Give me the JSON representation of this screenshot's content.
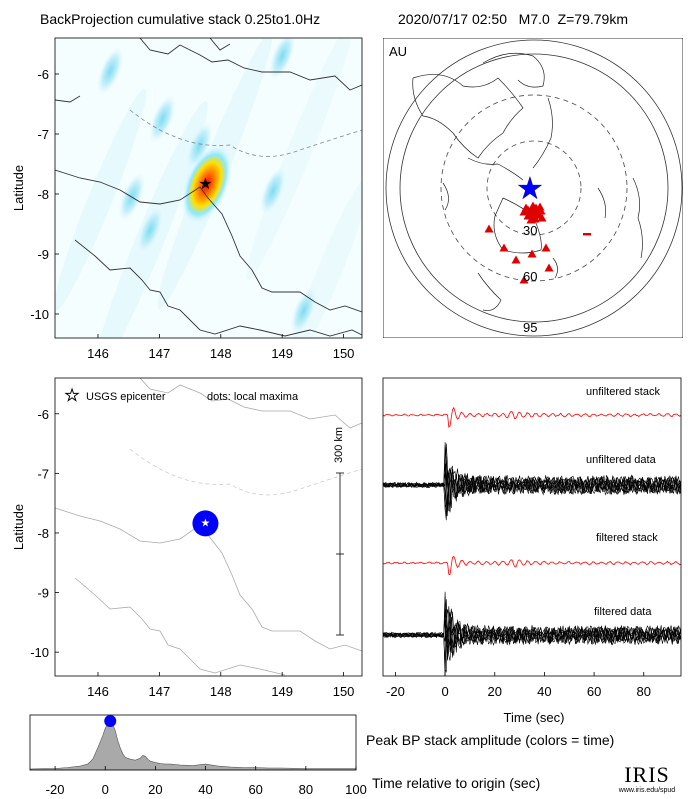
{
  "header": {
    "left_title": "BackProjection cumulative stack 0.25to1.0Hz",
    "right_title": "2020/07/17 02:50   M7.0  Z=79.79km"
  },
  "colors": {
    "stack_red": "#ff0000",
    "data_black": "#000000",
    "epicenter_blue": "#0000ff",
    "station_red": "#e00000",
    "peak_fill": "#a9a9a9",
    "map_water": "#ffffff",
    "coast_gray": "#555555"
  },
  "chart_data": [
    {
      "id": "bp_map",
      "type": "heatmap",
      "title": "BackProjection cumulative stack 0.25to1.0Hz",
      "ylabel": "Latitude",
      "xlim": [
        145.3,
        150.3
      ],
      "ylim": [
        -10.4,
        -5.4
      ],
      "x_ticks": [
        "146",
        "147",
        "148",
        "149",
        "150"
      ],
      "y_ticks": [
        "-6",
        "-7",
        "-8",
        "-9",
        "-10"
      ],
      "hotspot": {
        "lon": 147.77,
        "lat": -7.84
      },
      "epicenter": {
        "lon": 147.75,
        "lat": -7.84,
        "symbol": "star"
      },
      "faint_blobs": [
        {
          "lon": 147.05,
          "lat": -6.75
        },
        {
          "lon": 147.65,
          "lat": -7.2
        },
        {
          "lon": 146.85,
          "lat": -8.6
        },
        {
          "lon": 146.55,
          "lat": -8.05
        },
        {
          "lon": 148.85,
          "lat": -7.95
        },
        {
          "lon": 149.35,
          "lat": -9.95
        },
        {
          "lon": 146.2,
          "lat": -5.95
        },
        {
          "lon": 149.0,
          "lat": -5.7
        }
      ]
    },
    {
      "id": "station_map",
      "type": "scatter",
      "network_label": "AU",
      "ring_labels": [
        "30",
        "60",
        "95"
      ],
      "epicenter_symbol": "star",
      "stations_count_note": "",
      "stations": [
        [
          -10,
          -24
        ],
        [
          -6,
          -22
        ],
        [
          -2,
          -23
        ],
        [
          3,
          -24
        ],
        [
          -8,
          -20
        ],
        [
          -1,
          -18
        ],
        [
          2,
          -20
        ],
        [
          5,
          -21
        ],
        [
          -4,
          -26
        ],
        [
          0,
          -28
        ],
        [
          4,
          -27
        ],
        [
          7,
          -23
        ],
        [
          -6,
          -28
        ],
        [
          1,
          -31
        ],
        [
          -45,
          -41
        ],
        [
          -30,
          -60
        ],
        [
          -18,
          -72
        ],
        [
          -2,
          -66
        ],
        [
          12,
          -60
        ],
        [
          -10,
          -92
        ],
        [
          15,
          -80
        ],
        [
          6,
          -19
        ],
        [
          -3,
          -32
        ],
        [
          8,
          -30
        ]
      ],
      "station_extra": [
        {
          "shape": "dash",
          "x": 53,
          "y": -46
        }
      ]
    },
    {
      "id": "maxima_map",
      "type": "scatter",
      "ylabel": "Latitude",
      "xlim": [
        145.3,
        150.3
      ],
      "ylim": [
        -10.4,
        -5.4
      ],
      "x_ticks": [
        "146",
        "147",
        "148",
        "149",
        "150"
      ],
      "y_ticks": [
        "-6",
        "-7",
        "-8",
        "-9",
        "-10"
      ],
      "legend_star": "USGS epicenter",
      "legend_dots": "dots: local maxima",
      "scale_label": "300 km",
      "maxima": [
        {
          "lon": 147.75,
          "lat": -7.84,
          "time": 2
        }
      ],
      "epicenter": {
        "lon": 147.75,
        "lat": -7.84
      }
    },
    {
      "id": "traces",
      "type": "line",
      "xlabel": "Time (sec)",
      "xlim": [
        -25,
        95
      ],
      "x_ticks": [
        "-20",
        "0",
        "20",
        "40",
        "60",
        "80"
      ],
      "series": [
        {
          "name": "unfiltered stack",
          "color": "#ff0000",
          "kind": "stack"
        },
        {
          "name": "unfiltered data",
          "color": "#000000",
          "kind": "data"
        },
        {
          "name": "filtered stack",
          "color": "#ff0000",
          "kind": "stack"
        },
        {
          "name": "filtered data",
          "color": "#000000",
          "kind": "data"
        }
      ]
    },
    {
      "id": "peak_amp",
      "type": "area",
      "title": "Peak BP stack amplitude (colors = time)",
      "xlabel": "Time relative to origin (sec)",
      "xlim": [
        -30,
        100
      ],
      "ylim": [
        0,
        1
      ],
      "x_ticks": [
        "-20",
        "0",
        "20",
        "40",
        "60",
        "80",
        "100"
      ],
      "x": [
        -30,
        -25,
        -20,
        -15,
        -10,
        -7,
        -5,
        -3,
        -1,
        0,
        1,
        2,
        3,
        4,
        5,
        6,
        7,
        8,
        10,
        12,
        14,
        15,
        16,
        17,
        18,
        20,
        22,
        24,
        26,
        28,
        30,
        35,
        40,
        45,
        50,
        55,
        60,
        65,
        70,
        80,
        90,
        100
      ],
      "values": [
        0.02,
        0.03,
        0.03,
        0.05,
        0.08,
        0.12,
        0.22,
        0.45,
        0.7,
        0.85,
        0.95,
        1.0,
        0.93,
        0.8,
        0.6,
        0.45,
        0.33,
        0.26,
        0.22,
        0.2,
        0.24,
        0.3,
        0.28,
        0.22,
        0.18,
        0.15,
        0.13,
        0.12,
        0.12,
        0.11,
        0.1,
        0.09,
        0.12,
        0.08,
        0.06,
        0.05,
        0.05,
        0.04,
        0.04,
        0.03,
        0.03,
        0.03
      ],
      "peak_marker": {
        "x": 2,
        "y": 1.0
      }
    }
  ],
  "logo": {
    "text": "IRIS",
    "url_text": "www.iris.edu/spud"
  }
}
